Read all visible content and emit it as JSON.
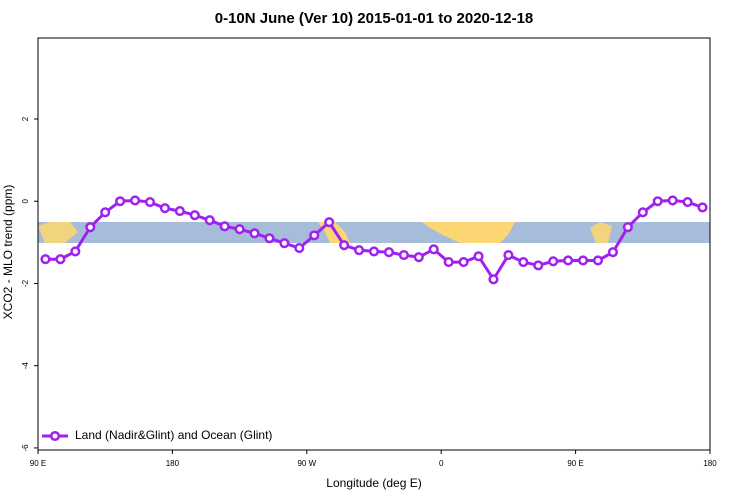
{
  "chart_data": {
    "type": "line",
    "title": "0-10N June (Ver 10)   2015-01-01 to 2020-12-18",
    "x_label": "Longitude (deg E)",
    "y_label": "XCO2 - MLO trend (ppm)",
    "x": [
      95,
      105,
      115,
      125,
      135,
      145,
      155,
      165,
      175,
      185,
      195,
      205,
      215,
      225,
      235,
      245,
      255,
      265,
      275,
      285,
      295,
      305,
      315,
      325,
      335,
      345,
      355,
      365,
      375,
      385,
      395,
      405,
      415,
      425,
      435,
      445,
      455,
      465,
      475,
      485,
      495,
      505,
      515,
      525,
      535
    ],
    "series": [
      {
        "name": "Land (Nadir&Glint) and Ocean (Glint)",
        "color": "#a020f0",
        "values": [
          -1.41,
          -1.41,
          -1.22,
          -0.63,
          -0.27,
          0.0,
          0.02,
          -0.02,
          -0.17,
          -0.24,
          -0.34,
          -0.46,
          -0.61,
          -0.68,
          -0.78,
          -0.9,
          -1.02,
          -1.14,
          -0.83,
          -0.51,
          -1.07,
          -1.19,
          -1.22,
          -1.24,
          -1.31,
          -1.36,
          -1.17,
          -1.48,
          -1.48,
          -1.34,
          -1.9,
          -1.31,
          -1.48,
          -1.56,
          -1.46,
          -1.44,
          -1.44,
          -1.44,
          -1.24,
          -0.63,
          -0.27,
          0.0,
          0.02,
          -0.02,
          -0.15
        ]
      }
    ],
    "xlim": [
      90,
      540
    ],
    "xticks": [
      {
        "value": 90,
        "label": "90 E"
      },
      {
        "value": 180,
        "label": "180"
      },
      {
        "value": 270,
        "label": "90 W"
      },
      {
        "value": 360,
        "label": "0"
      },
      {
        "value": 450,
        "label": "90 E"
      },
      {
        "value": 540,
        "label": "180"
      }
    ],
    "ylim": [
      -6.05,
      3.97
    ],
    "yticks": [
      2,
      0,
      -2,
      -4,
      -6
    ],
    "legend": "bottom-left"
  }
}
